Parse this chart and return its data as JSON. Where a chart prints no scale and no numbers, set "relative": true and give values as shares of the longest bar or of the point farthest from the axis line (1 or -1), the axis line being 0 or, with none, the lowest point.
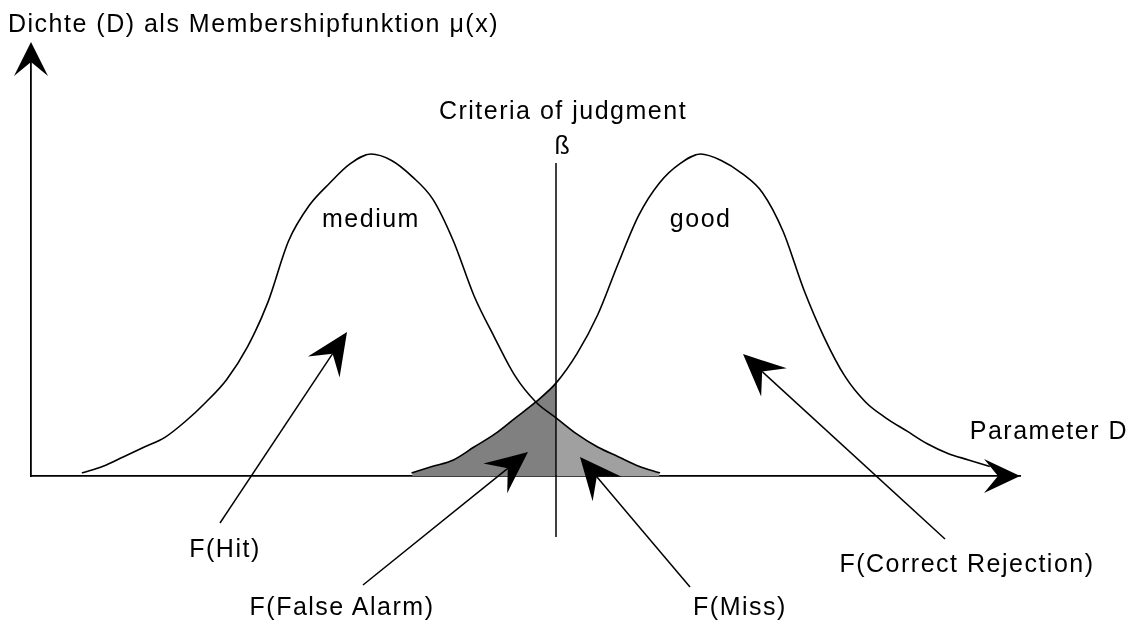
{
  "chart_data": {
    "type": "line",
    "relative": true,
    "marker": "none",
    "ylabel": "Dichte (D) als Membershipfunktion μ(x)",
    "xlabel": "Parameter D",
    "categories": [
      null,
      null,
      null,
      null,
      null,
      null,
      null,
      null,
      null,
      null,
      null,
      null,
      null,
      null,
      null,
      null,
      null,
      null,
      null,
      null,
      null,
      null,
      null,
      null,
      null,
      null,
      null,
      null,
      null,
      null,
      null,
      null,
      null,
      null,
      null,
      null,
      null,
      null,
      null,
      null,
      null,
      null,
      null,
      null,
      null,
      null,
      null,
      null
    ],
    "series": [
      {
        "name": "medium",
        "color": "#000000",
        "values": [
          null,
          null,
          0.01,
          0.03,
          0.06,
          0.09,
          0.12,
          0.17,
          0.23,
          0.3,
          0.4,
          0.54,
          0.73,
          0.84,
          0.91,
          0.97,
          1,
          0.98,
          0.93,
          0.86,
          0.73,
          0.56,
          0.43,
          0.31,
          0.23,
          0.18,
          0.13,
          0.09,
          0.06,
          0.03,
          0.01,
          null,
          null,
          null,
          null,
          null,
          null,
          null,
          null,
          null,
          null,
          null,
          null,
          null,
          null,
          null,
          null,
          null
        ]
      },
      {
        "name": "good",
        "color": "#000000",
        "values": [
          null,
          null,
          null,
          null,
          null,
          null,
          null,
          null,
          null,
          null,
          null,
          null,
          null,
          null,
          null,
          null,
          null,
          null,
          0.01,
          0.03,
          0.05,
          0.09,
          0.13,
          0.18,
          0.23,
          0.29,
          0.38,
          0.5,
          0.66,
          0.81,
          0.91,
          0.97,
          1,
          0.98,
          0.94,
          0.88,
          0.76,
          0.58,
          0.43,
          0.31,
          0.23,
          0.18,
          0.14,
          0.1,
          0.07,
          0.05,
          0.03,
          null
        ]
      },
      {
        "type": "area",
        "color": "#808080",
        "values": [
          null,
          null,
          null,
          null,
          null,
          null,
          null,
          null,
          null,
          null,
          null,
          null,
          null,
          null,
          null,
          null,
          null,
          null,
          0.01,
          0.03,
          0.05,
          0.09,
          0.13,
          0.18,
          0.23,
          0.29,
          null,
          null,
          null,
          null,
          null,
          null,
          null,
          null,
          null,
          null,
          null,
          null,
          null,
          null,
          null,
          null,
          null,
          null,
          null,
          null,
          null,
          null
        ]
      },
      {
        "type": "area",
        "color": "#a0a0a0",
        "values": [
          null,
          null,
          null,
          null,
          null,
          null,
          null,
          null,
          null,
          null,
          null,
          null,
          null,
          null,
          null,
          null,
          null,
          null,
          null,
          null,
          null,
          null,
          null,
          null,
          null,
          0.18,
          0.13,
          0.09,
          0.06,
          0.03,
          0.01,
          null,
          null,
          null,
          null,
          null,
          null,
          null,
          null,
          null,
          null,
          null,
          null,
          null,
          null,
          null,
          null,
          null
        ]
      }
    ],
    "annotations": [
      "Criteria of judgment",
      "ß",
      "F(Hit)",
      "F(False Alarm)",
      "F(Miss)",
      "F(Correct Rejection)"
    ]
  }
}
